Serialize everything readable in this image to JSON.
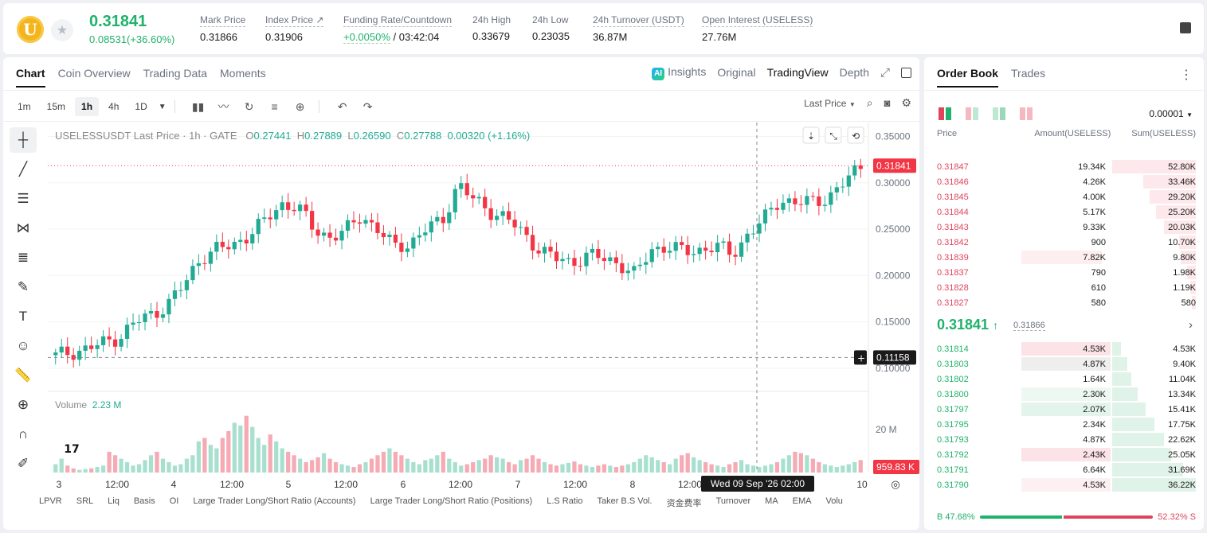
{
  "ticker": {
    "coin_glyph": "U",
    "last_price": "0.31841",
    "change": "0.08531(+36.60%)",
    "stats": [
      {
        "label": "Mark Price",
        "value": "0.31866"
      },
      {
        "label": "Index Price ↗",
        "value": "0.31906"
      },
      {
        "label": "Funding Rate/Countdown",
        "value_green": "+0.0050%",
        "value": " / 03:42:04"
      },
      {
        "label": "24h High",
        "value": "0.33679"
      },
      {
        "label": "24h Low",
        "value": "0.23035"
      },
      {
        "label": "24h Turnover (USDT)",
        "value": "36.87M"
      },
      {
        "label": "Open Interest (USELESS)",
        "value": "27.76M"
      }
    ]
  },
  "chart_tabs": [
    "Chart",
    "Coin Overview",
    "Trading Data",
    "Moments"
  ],
  "chart_views": {
    "insights": "Insights",
    "original": "Original",
    "tradingview": "TradingView",
    "depth": "Depth",
    "ai_badge": "AI"
  },
  "timeframes": [
    "1m",
    "15m",
    "1h",
    "4h",
    "1D"
  ],
  "price_source": "Last Price",
  "legend": {
    "symbol": "USELESSUSDT Last Price · 1h · GATE",
    "o_label": "O",
    "o": "0.27441",
    "h_label": "H",
    "h": "0.27889",
    "l_label": "L",
    "l": "0.26590",
    "c_label": "C",
    "c": "0.27788",
    "chg": "0.00320 (+1.16%)"
  },
  "volume": {
    "label": "Volume",
    "value": "2.23 M"
  },
  "indicators": [
    "LPVR",
    "SRL",
    "Liq",
    "Basis",
    "OI",
    "Large Trader Long/Short Ratio (Accounts)",
    "Large Trader Long/Short Ratio (Positions)",
    "L.S Ratio",
    "Taker B.S Vol.",
    "资金费率",
    "Turnover",
    "MA",
    "EMA",
    "Volu"
  ],
  "chart_data": {
    "type": "candlestick",
    "price_axis": [
      "0.35000",
      "0.30000",
      "0.25000",
      "0.20000",
      "0.15000",
      "0.10000"
    ],
    "volume_axis": [
      "20 M"
    ],
    "x_labels": [
      "3",
      "12:00",
      "4",
      "12:00",
      "5",
      "12:00",
      "6",
      "12:00",
      "7",
      "12:00",
      "8",
      "12:00",
      "10"
    ],
    "last_price_tag": "0.31841",
    "cursor_price_tag": "0.11158",
    "cursor_time": "Wed 09 Sep '26   02:00",
    "last_volume_tag": "959.83 K",
    "ylim": [
      0.075,
      0.365
    ],
    "price_path": [
      0.113,
      0.118,
      0.121,
      0.127,
      0.135,
      0.15,
      0.158,
      0.17,
      0.19,
      0.22,
      0.228,
      0.232,
      0.245,
      0.258,
      0.277,
      0.275,
      0.25,
      0.242,
      0.247,
      0.265,
      0.25,
      0.23,
      0.235,
      0.25,
      0.258,
      0.3,
      0.28,
      0.27,
      0.262,
      0.245,
      0.23,
      0.218,
      0.214,
      0.222,
      0.218,
      0.214,
      0.2,
      0.228,
      0.232,
      0.225,
      0.228,
      0.232,
      0.222,
      0.245,
      0.26,
      0.283,
      0.278,
      0.279,
      0.285,
      0.3,
      0.318
    ],
    "volume_bars": [
      0.12,
      0.2,
      0.1,
      0.06,
      0.04,
      0.05,
      0.06,
      0.08,
      0.1,
      0.3,
      0.25,
      0.2,
      0.15,
      0.1,
      0.12,
      0.18,
      0.25,
      0.3,
      0.2,
      0.15,
      0.1,
      0.12,
      0.2,
      0.25,
      0.45,
      0.5,
      0.4,
      0.35,
      0.5,
      0.6,
      0.72,
      0.68,
      0.82,
      0.66,
      0.5,
      0.4,
      0.55,
      0.45,
      0.35,
      0.3,
      0.25,
      0.2,
      0.15,
      0.18,
      0.22,
      0.28,
      0.2,
      0.15,
      0.12,
      0.1,
      0.08,
      0.12,
      0.15,
      0.2,
      0.25,
      0.3,
      0.35,
      0.3,
      0.25,
      0.2,
      0.15,
      0.12,
      0.18,
      0.2,
      0.25,
      0.3,
      0.2,
      0.15,
      0.1,
      0.12,
      0.15,
      0.18,
      0.2,
      0.25,
      0.22,
      0.2,
      0.15,
      0.12,
      0.18,
      0.2,
      0.25,
      0.2,
      0.15,
      0.12,
      0.1,
      0.12,
      0.14,
      0.16,
      0.12,
      0.1,
      0.08,
      0.1,
      0.12,
      0.1,
      0.08,
      0.1,
      0.12,
      0.15,
      0.2,
      0.25,
      0.22,
      0.18,
      0.15,
      0.12,
      0.2,
      0.25,
      0.28,
      0.22,
      0.18,
      0.15,
      0.12,
      0.1,
      0.08,
      0.12,
      0.15,
      0.18,
      0.12,
      0.1,
      0.08,
      0.1,
      0.12,
      0.15,
      0.2,
      0.25,
      0.3,
      0.28,
      0.25,
      0.2,
      0.15,
      0.12,
      0.1,
      0.08,
      0.1,
      0.12,
      0.15,
      0.18,
      0.2,
      0.25,
      0.3,
      0.28,
      0.2,
      0.15,
      0.1,
      0.08
    ]
  },
  "orderbook": {
    "tabs": [
      "Order Book",
      "Trades"
    ],
    "precision": "0.00001",
    "headers": {
      "price": "Price",
      "amount": "Amount(USELESS)",
      "sum": "Sum(USELESS)"
    },
    "asks": [
      {
        "p": "0.31847",
        "a": "19.34K",
        "s": "52.80K",
        "depth": 1.0,
        "amt": 0.0
      },
      {
        "p": "0.31846",
        "a": "4.26K",
        "s": "33.46K",
        "depth": 0.63,
        "amt": 0.0
      },
      {
        "p": "0.31845",
        "a": "4.00K",
        "s": "29.20K",
        "depth": 0.55,
        "amt": 0.0
      },
      {
        "p": "0.31844",
        "a": "5.17K",
        "s": "25.20K",
        "depth": 0.48,
        "amt": 0.0
      },
      {
        "p": "0.31843",
        "a": "9.33K",
        "s": "20.03K",
        "depth": 0.38,
        "amt": 0.0
      },
      {
        "p": "0.31842",
        "a": "900",
        "s": "10.70K",
        "depth": 0.2,
        "amt": 0.0
      },
      {
        "p": "0.31839",
        "a": "7.82K",
        "s": "9.80K",
        "depth": 0.18,
        "amt": 0.75
      },
      {
        "p": "0.31837",
        "a": "790",
        "s": "1.98K",
        "depth": 0.1,
        "amt": 0.0
      },
      {
        "p": "0.31828",
        "a": "610",
        "s": "1.19K",
        "depth": 0.07,
        "amt": 0.0
      },
      {
        "p": "0.31827",
        "a": "580",
        "s": "580",
        "depth": 0.05,
        "amt": 0.0
      }
    ],
    "mid": {
      "price": "0.31841",
      "arrow": "↑",
      "mark": "0.31866"
    },
    "bids": [
      {
        "p": "0.31814",
        "a": "4.53K",
        "s": "4.53K",
        "depth": 0.1,
        "amt": 1.0,
        "tint": "red"
      },
      {
        "p": "0.31803",
        "a": "4.87K",
        "s": "9.40K",
        "depth": 0.18,
        "amt": 1.0,
        "tint": "gray"
      },
      {
        "p": "0.31802",
        "a": "1.64K",
        "s": "11.04K",
        "depth": 0.23,
        "amt": 0.0,
        "tint": "none"
      },
      {
        "p": "0.31800",
        "a": "2.30K",
        "s": "13.34K",
        "depth": 0.3,
        "amt": 1.0,
        "tint": "lightgreen"
      },
      {
        "p": "0.31797",
        "a": "2.07K",
        "s": "15.41K",
        "depth": 0.4,
        "amt": 1.0,
        "tint": "green"
      },
      {
        "p": "0.31795",
        "a": "2.34K",
        "s": "17.75K",
        "depth": 0.5,
        "amt": 0.0,
        "tint": "none"
      },
      {
        "p": "0.31793",
        "a": "4.87K",
        "s": "22.62K",
        "depth": 0.62,
        "amt": 0.0,
        "tint": "none"
      },
      {
        "p": "0.31792",
        "a": "2.43K",
        "s": "25.05K",
        "depth": 0.7,
        "amt": 1.0,
        "tint": "red"
      },
      {
        "p": "0.31791",
        "a": "6.64K",
        "s": "31.69K",
        "depth": 0.85,
        "amt": 0.0,
        "tint": "none"
      },
      {
        "p": "0.31790",
        "a": "4.53K",
        "s": "36.22K",
        "depth": 1.0,
        "amt": 1.0,
        "tint": "lightred"
      }
    ],
    "buy_ratio": "B 47.68%",
    "sell_ratio": "52.32% S",
    "buy_pct": 47.68
  },
  "colors": {
    "up": "#22ab94",
    "down": "#f23645",
    "accent_green": "#20b26c",
    "accent_red": "#e0445c"
  }
}
